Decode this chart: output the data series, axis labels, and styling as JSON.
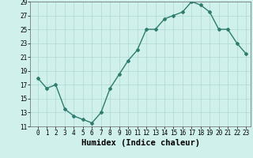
{
  "title": "",
  "xlabel": "Humidex (Indice chaleur)",
  "ylabel": "",
  "x": [
    0,
    1,
    2,
    3,
    4,
    5,
    6,
    7,
    8,
    9,
    10,
    11,
    12,
    13,
    14,
    15,
    16,
    17,
    18,
    19,
    20,
    21,
    22,
    23
  ],
  "y": [
    18,
    16.5,
    17,
    13.5,
    12.5,
    12,
    11.5,
    13,
    16.5,
    18.5,
    20.5,
    22,
    25,
    25,
    26.5,
    27,
    27.5,
    29,
    28.5,
    27.5,
    25,
    25,
    23,
    21.5
  ],
  "ylim": [
    11,
    29
  ],
  "yticks": [
    11,
    13,
    15,
    17,
    19,
    21,
    23,
    25,
    27,
    29
  ],
  "xticks": [
    0,
    1,
    2,
    3,
    4,
    5,
    6,
    7,
    8,
    9,
    10,
    11,
    12,
    13,
    14,
    15,
    16,
    17,
    18,
    19,
    20,
    21,
    22,
    23
  ],
  "line_color": "#2e7d6e",
  "marker": "D",
  "marker_size": 2,
  "bg_color": "#cff0eb",
  "grid_color": "#aed8d0",
  "tick_label_fontsize": 5.5,
  "xlabel_fontsize": 7.5,
  "line_width": 1.0
}
